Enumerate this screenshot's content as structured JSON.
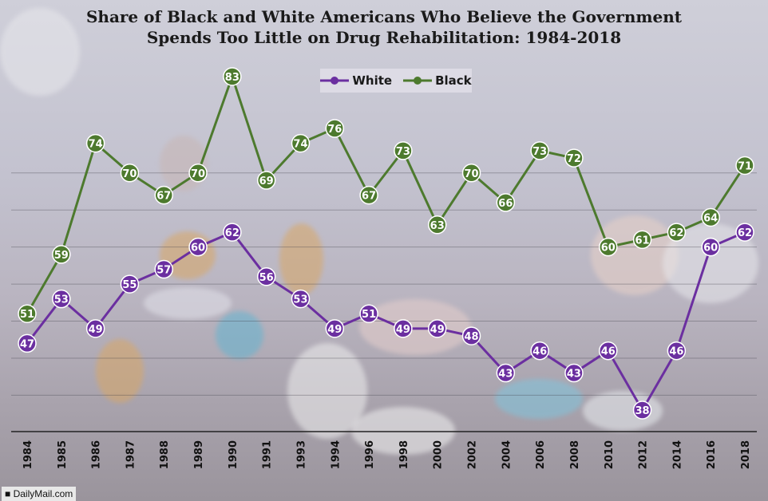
{
  "chart_data": {
    "type": "line",
    "title": "Share of Black and White Americans Who Believe the Government Spends Too Little on Drug Rehabilitation: 1984-2018",
    "title_line1": "Share of Black and White Americans Who Believe the Government",
    "title_line2": "Spends Too Little on Drug Rehabilitation: 1984-2018",
    "xlabel": "",
    "ylabel": "",
    "categories": [
      "1984",
      "1985",
      "1986",
      "1987",
      "1988",
      "1989",
      "1990",
      "1991",
      "1993",
      "1994",
      "1996",
      "1998",
      "2000",
      "2002",
      "2004",
      "2006",
      "2008",
      "2010",
      "2012",
      "2014",
      "2016",
      "2018"
    ],
    "series": [
      {
        "name": "White",
        "color": "#6b2fa0",
        "values": [
          47,
          53,
          49,
          55,
          57,
          60,
          62,
          56,
          53,
          49,
          51,
          49,
          49,
          48,
          43,
          46,
          43,
          46,
          38,
          46,
          60,
          62
        ]
      },
      {
        "name": "Black",
        "color": "#4d7a2e",
        "values": [
          51,
          59,
          74,
          70,
          67,
          70,
          83,
          69,
          74,
          76,
          67,
          73,
          63,
          70,
          66,
          73,
          72,
          60,
          61,
          62,
          64,
          71
        ]
      }
    ],
    "ylim": [
      30,
      90
    ],
    "grid": true,
    "legend_position": "top-center"
  },
  "watermark": "■ DailyMail.com"
}
